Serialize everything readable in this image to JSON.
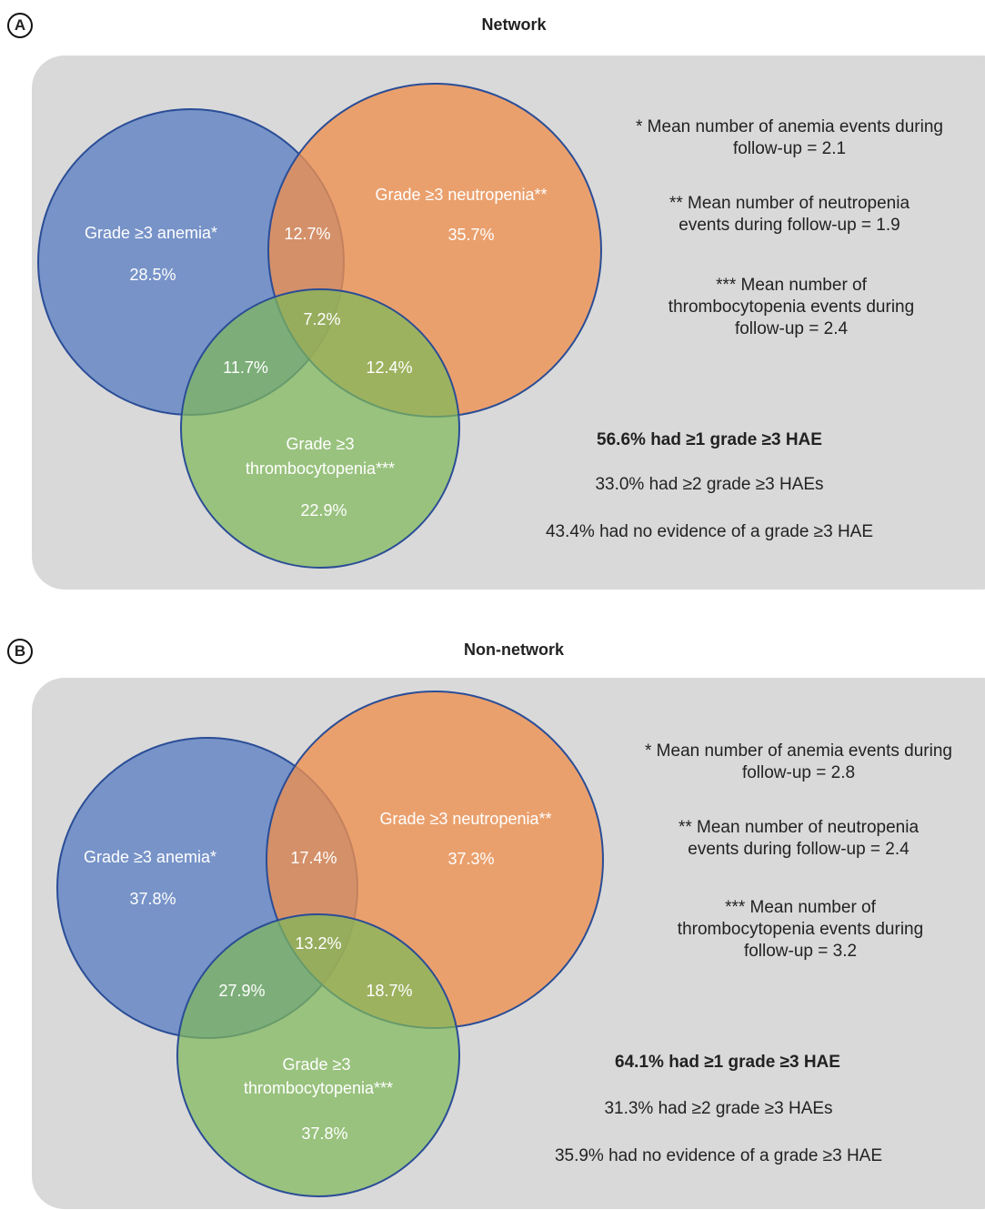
{
  "panels": [
    {
      "letter": "A",
      "title": "Network",
      "circles": {
        "anemia_label": "Grade ≥3 anemia*",
        "neutropenia_label": "Grade ≥3 neutropenia**",
        "thrombo_label_line1": "Grade ≥3",
        "thrombo_label_line2": "thrombocytopenia***"
      },
      "regions": {
        "anemia_only": "28.5%",
        "neutropenia_only": "35.7%",
        "thrombo_only": "22.9%",
        "anemia_neutropenia": "12.7%",
        "anemia_thrombo": "11.7%",
        "neutropenia_thrombo": "12.4%",
        "all_three": "7.2%"
      },
      "notes": {
        "anemia": "* Mean number of anemia events during follow-up = 2.1",
        "neutropenia": "** Mean number of neutropenia events during follow-up = 1.9",
        "thrombo": "*** Mean number of thrombocytopenia events during follow-up = 2.4"
      },
      "summary": {
        "at_least_one": "56.6% had ≥1 grade ≥3 HAE",
        "at_least_two": "33.0% had ≥2 grade ≥3 HAEs",
        "none": "43.4% had no evidence of a grade ≥3 HAE"
      }
    },
    {
      "letter": "B",
      "title": "Non-network",
      "circles": {
        "anemia_label": "Grade ≥3 anemia*",
        "neutropenia_label": "Grade ≥3 neutropenia**",
        "thrombo_label_line1": "Grade ≥3",
        "thrombo_label_line2": "thrombocytopenia***"
      },
      "regions": {
        "anemia_only": "37.8%",
        "neutropenia_only": "37.3%",
        "thrombo_only": "37.8%",
        "anemia_neutropenia": "17.4%",
        "anemia_thrombo": "27.9%",
        "neutropenia_thrombo": "18.7%",
        "all_three": "13.2%"
      },
      "notes": {
        "anemia": "* Mean number of anemia events during follow-up = 2.8",
        "neutropenia": "** Mean number of neutropenia events during follow-up = 2.4",
        "thrombo": "*** Mean number of thrombocytopenia events during follow-up = 3.2"
      },
      "summary": {
        "at_least_one": "64.1% had ≥1 grade ≥3 HAE",
        "at_least_two": "31.3% had ≥2 grade ≥3 HAEs",
        "none": "35.9% had no evidence of a grade ≥3 HAE"
      }
    }
  ],
  "colors": {
    "anemia": "#5b7fc3",
    "neutropenia": "#ee8f4e",
    "thrombo": "#7fb95a",
    "panel_background": "#d9d9d9",
    "circle_stroke": "#2a4d96"
  }
}
